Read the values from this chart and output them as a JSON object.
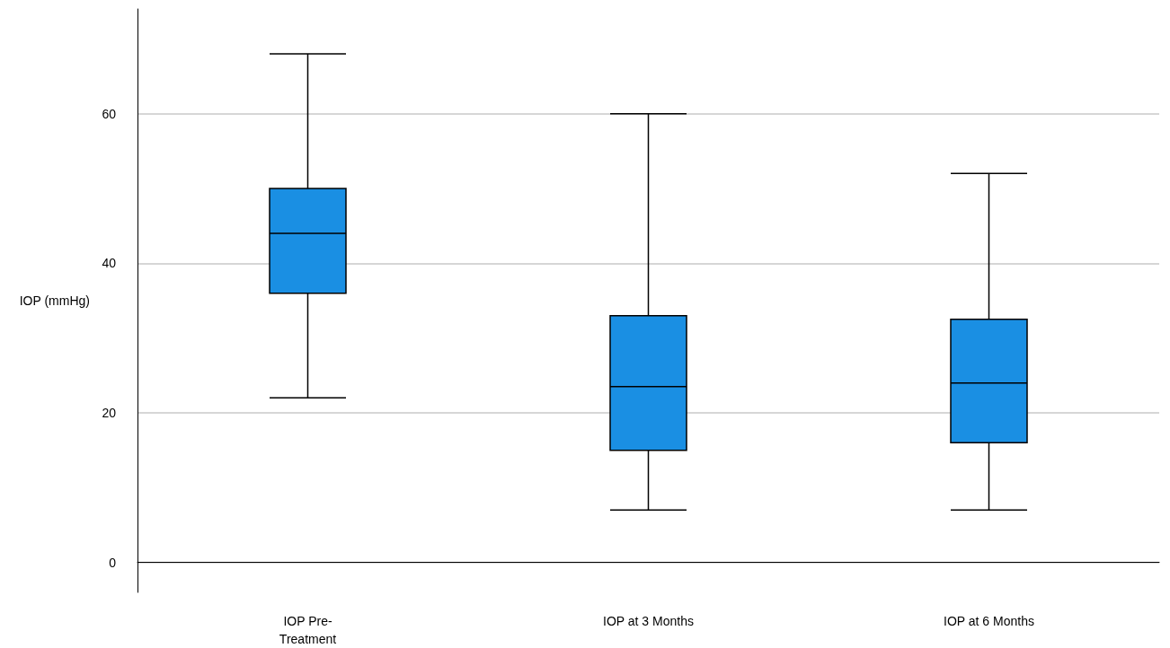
{
  "chart_data": {
    "type": "box",
    "ylabel": "IOP (mmHg)",
    "categories": [
      "IOP Pre-Treatment",
      "IOP at 3 Months",
      "IOP at 6 Months"
    ],
    "boxes": [
      {
        "low": 22,
        "q1": 36,
        "median": 44,
        "q3": 50,
        "high": 68
      },
      {
        "low": 7,
        "q1": 15,
        "median": 23.5,
        "q3": 33,
        "high": 60
      },
      {
        "low": 7,
        "q1": 16,
        "median": 24,
        "q3": 32.5,
        "high": 52
      }
    ],
    "color": "#1a8fe3",
    "ylim": [
      -4,
      74
    ],
    "yticks": [
      0,
      20,
      40,
      60
    ],
    "grid": "y"
  }
}
